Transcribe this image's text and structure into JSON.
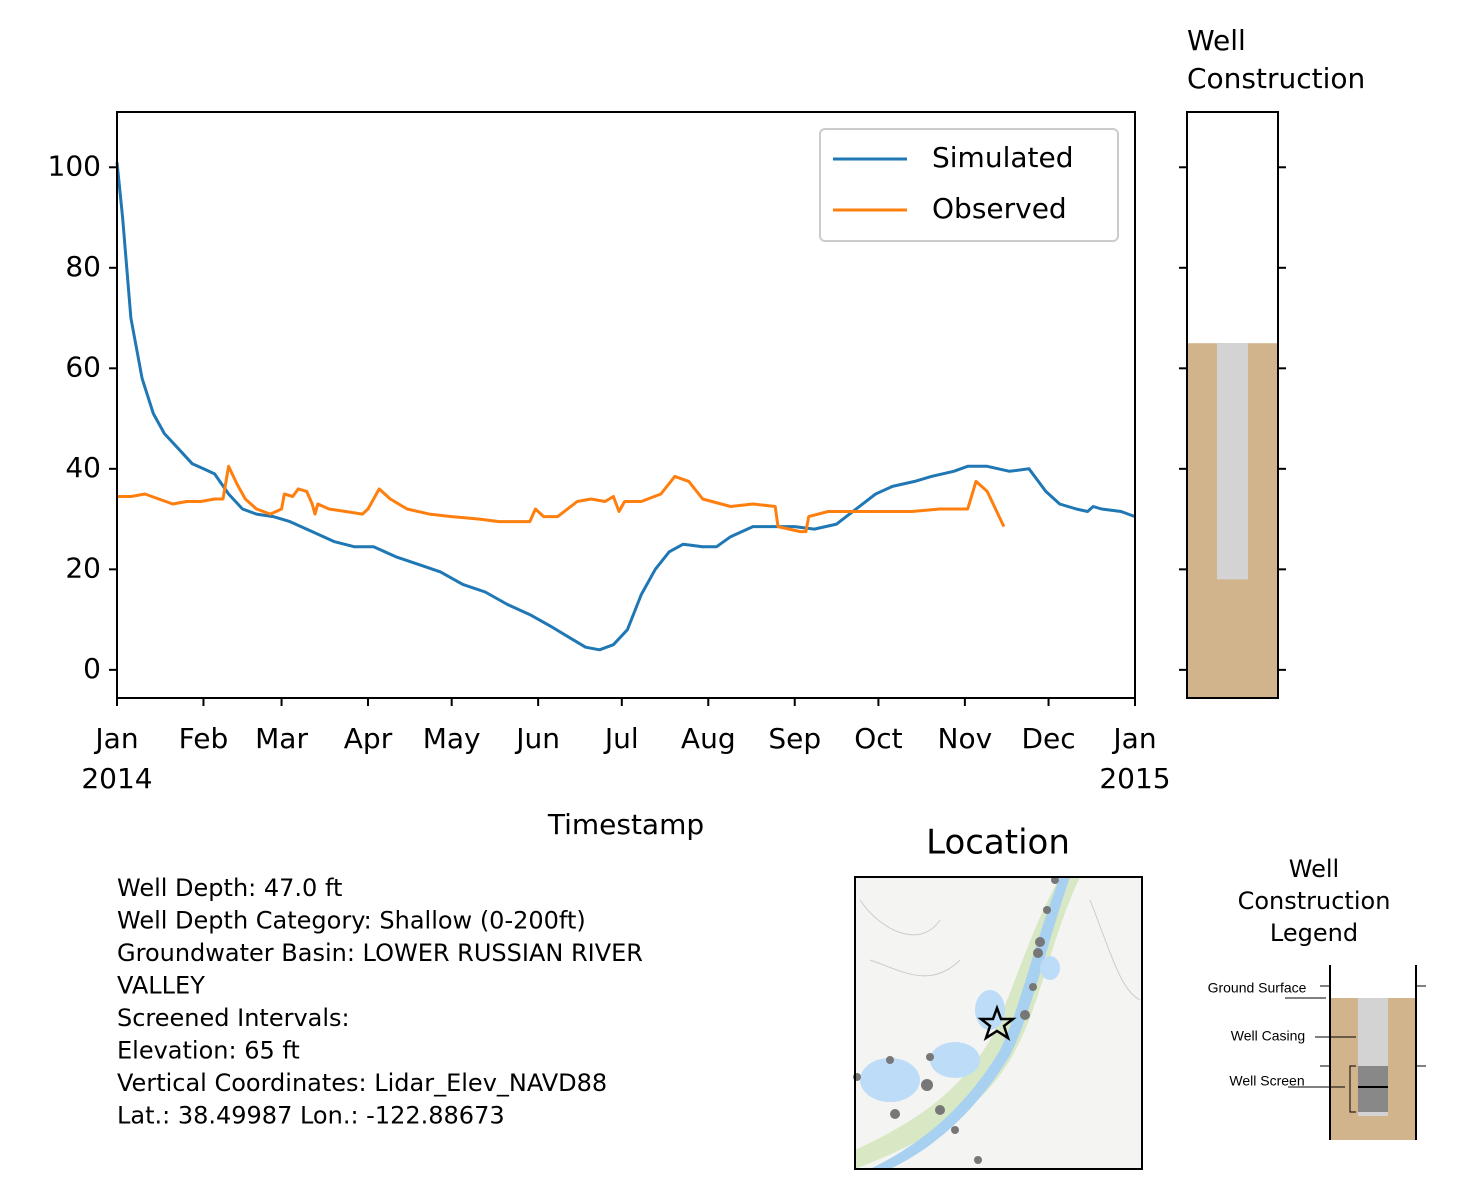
{
  "chart_data": [
    {
      "type": "line",
      "xlabel": "Timestamp",
      "xlim": [
        0,
        365
      ],
      "xticks": [
        {
          "value": 0,
          "label": "Jan"
        },
        {
          "value": 31,
          "label": "Feb"
        },
        {
          "value": 59,
          "label": "Mar"
        },
        {
          "value": 90,
          "label": "Apr"
        },
        {
          "value": 120,
          "label": "May"
        },
        {
          "value": 151,
          "label": "Jun"
        },
        {
          "value": 181,
          "label": "Jul"
        },
        {
          "value": 212,
          "label": "Aug"
        },
        {
          "value": 243,
          "label": "Sep"
        },
        {
          "value": 273,
          "label": "Oct"
        },
        {
          "value": 304,
          "label": "Nov"
        },
        {
          "value": 334,
          "label": "Dec"
        },
        {
          "value": 365,
          "label": "Jan"
        }
      ],
      "xtick_years": [
        {
          "value": 0,
          "label": "2014"
        },
        {
          "value": 365,
          "label": "2015"
        }
      ],
      "ylim": [
        -5.6,
        111
      ],
      "yticks": [
        0,
        20,
        40,
        60,
        80,
        100
      ],
      "legend": "upper right",
      "series": [
        {
          "name": "Simulated",
          "color": "#1f77b4",
          "x": [
            0,
            2,
            5,
            9,
            13,
            17,
            22,
            27,
            31,
            35,
            40,
            45,
            50,
            56,
            62,
            70,
            78,
            85,
            92,
            100,
            108,
            116,
            124,
            132,
            140,
            148,
            156,
            162,
            168,
            173,
            178,
            183,
            188,
            193,
            198,
            203,
            210,
            215,
            220,
            228,
            235,
            243,
            250,
            258,
            265,
            272,
            278,
            286,
            292,
            300,
            305,
            312,
            320,
            327,
            333,
            338,
            344,
            348,
            350,
            353,
            360,
            365
          ],
          "values": [
            101,
            90,
            70,
            58,
            51,
            47,
            44,
            41,
            40,
            39,
            35,
            32,
            31,
            30.5,
            29.5,
            27.5,
            25.5,
            24.5,
            24.5,
            22.5,
            21,
            19.5,
            17,
            15.5,
            13,
            11,
            8.5,
            6.5,
            4.5,
            4,
            5,
            8,
            15,
            20,
            23.5,
            25,
            24.5,
            24.5,
            26.5,
            28.5,
            28.5,
            28.5,
            28,
            29,
            32,
            35,
            36.5,
            37.5,
            38.5,
            39.5,
            40.5,
            40.5,
            39.5,
            40,
            35.5,
            33,
            32,
            31.5,
            32.5,
            32,
            31.5,
            30.5
          ]
        },
        {
          "name": "Observed",
          "color": "#ff7f0e",
          "x": [
            0,
            5,
            10,
            15,
            20,
            25,
            30,
            35,
            38,
            40,
            43,
            46,
            50,
            55,
            59,
            60,
            63,
            65,
            68,
            70,
            71,
            72,
            76,
            82,
            88,
            90,
            92,
            94,
            98,
            104,
            112,
            120,
            130,
            137,
            145,
            148,
            150,
            153,
            158,
            165,
            170,
            175,
            178,
            180,
            182,
            188,
            195,
            200,
            205,
            210,
            220,
            228,
            236,
            237,
            245,
            247,
            248,
            255,
            265,
            275,
            285,
            295,
            305,
            308,
            312,
            318
          ],
          "values": [
            34.5,
            34.5,
            35,
            34,
            33,
            33.5,
            33.5,
            34,
            34,
            40.5,
            37,
            34,
            32,
            31,
            32,
            35,
            34.5,
            36,
            35.5,
            33,
            31,
            33,
            32,
            31.5,
            31,
            32,
            34,
            36,
            34,
            32,
            31,
            30.5,
            30,
            29.5,
            29.5,
            29.5,
            32,
            30.5,
            30.5,
            33.5,
            34,
            33.5,
            34.5,
            31.5,
            33.5,
            33.5,
            35,
            38.5,
            37.5,
            34,
            32.5,
            33,
            32.5,
            28.5,
            27.5,
            27.5,
            30.5,
            31.5,
            31.5,
            31.5,
            31.5,
            32,
            32,
            37.5,
            35.5,
            28.5
          ]
        }
      ]
    },
    {
      "type": "well",
      "title": [
        "Well",
        "Construction"
      ],
      "ylim": [
        -5.6,
        111
      ],
      "yticks": [
        0,
        20,
        40,
        60,
        80,
        100
      ],
      "ground_surface": 65,
      "casing_bottom": 18,
      "ground_color": "#d2b48c",
      "casing_color": "#d3d3d3"
    }
  ],
  "info": [
    "Well Depth: 47.0 ft",
    "Well Depth Category: Shallow (0-200ft)",
    "Groundwater Basin: LOWER RUSSIAN RIVER",
    "VALLEY",
    "Screened Intervals:",
    "Elevation: 65 ft",
    "Vertical Coordinates: Lidar_Elev_NAVD88",
    "Lat.: 38.49987 Lon.: -122.88673"
  ],
  "map": {
    "title": "Location"
  },
  "construction_legend": {
    "title": [
      "Well",
      "Construction",
      "Legend"
    ],
    "labels": [
      "Ground Surface",
      "Well Casing",
      "Well Screen"
    ]
  }
}
